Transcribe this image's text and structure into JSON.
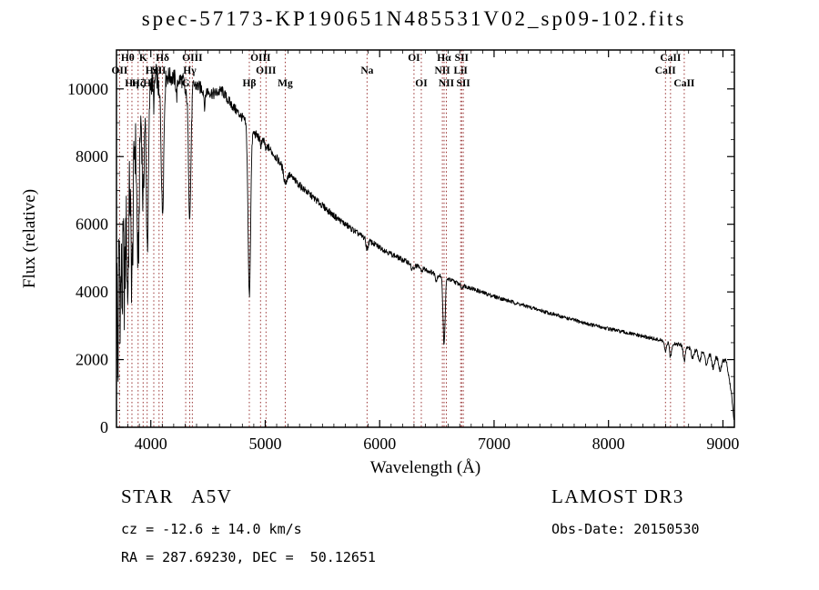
{
  "title": "spec-57173-KP190651N485531V02_sp09-102.fits",
  "annotations": {
    "class_label": "STAR   A5V",
    "survey": "LAMOST DR3",
    "cz": "cz = -12.6 ± 14.0 km/s",
    "obs_date": "Obs-Date: 20150530",
    "coords": "RA = 287.69230, DEC =  50.12651"
  },
  "chart_data": {
    "type": "line",
    "title": "spec-57173-KP190651N485531V02_sp09-102.fits",
    "xlabel": "Wavelength (Å)",
    "ylabel": "Flux (relative)",
    "xlim": [
      3700,
      9100
    ],
    "ylim": [
      0,
      11150
    ],
    "x_major_step": 1000,
    "x_minor_step": 100,
    "y_major_step": 2000,
    "y_minor_step": 500,
    "x_tick_labels": [
      4000,
      5000,
      6000,
      7000,
      8000,
      9000
    ],
    "y_tick_labels": [
      0,
      2000,
      4000,
      6000,
      8000,
      10000
    ],
    "line_color": "#000000",
    "marker_color": "#993333",
    "grid": false,
    "continuum_points": [
      [
        3700,
        5600
      ],
      [
        3760,
        6900
      ],
      [
        3800,
        7300
      ],
      [
        3850,
        8200
      ],
      [
        3900,
        9300
      ],
      [
        3950,
        9900
      ],
      [
        4000,
        10250
      ],
      [
        4060,
        10400
      ],
      [
        4150,
        10380
      ],
      [
        4250,
        10280
      ],
      [
        4350,
        10180
      ],
      [
        4450,
        10000
      ],
      [
        4550,
        9850
      ],
      [
        4620,
        9950
      ],
      [
        4700,
        9550
      ],
      [
        4800,
        9150
      ],
      [
        4900,
        8700
      ],
      [
        5000,
        8400
      ],
      [
        5100,
        7950
      ],
      [
        5200,
        7500
      ],
      [
        5300,
        7150
      ],
      [
        5400,
        6850
      ],
      [
        5500,
        6550
      ],
      [
        5600,
        6250
      ],
      [
        5700,
        6000
      ],
      [
        5800,
        5750
      ],
      [
        5900,
        5520
      ],
      [
        6000,
        5320
      ],
      [
        6100,
        5120
      ],
      [
        6200,
        4950
      ],
      [
        6300,
        4800
      ],
      [
        6400,
        4660
      ],
      [
        6500,
        4520
      ],
      [
        6600,
        4380
      ],
      [
        6700,
        4230
      ],
      [
        6800,
        4110
      ],
      [
        6900,
        3980
      ],
      [
        7000,
        3870
      ],
      [
        7200,
        3660
      ],
      [
        7400,
        3460
      ],
      [
        7600,
        3260
      ],
      [
        7800,
        3070
      ],
      [
        8000,
        2910
      ],
      [
        8200,
        2760
      ],
      [
        8400,
        2610
      ],
      [
        8600,
        2460
      ],
      [
        8800,
        2260
      ],
      [
        8950,
        2080
      ],
      [
        9030,
        1950
      ],
      [
        9070,
        1100
      ],
      [
        9100,
        150
      ]
    ],
    "absorption_lines": [
      {
        "center": 3712,
        "depth": 4200,
        "width": 5
      },
      {
        "center": 3734,
        "depth": 2600,
        "width": 5
      },
      {
        "center": 3750,
        "depth": 2900,
        "width": 6
      },
      {
        "center": 3771,
        "depth": 3100,
        "width": 7
      },
      {
        "center": 3798,
        "depth": 3300,
        "width": 8
      },
      {
        "center": 3835,
        "depth": 3600,
        "width": 9
      },
      {
        "center": 3889,
        "depth": 4200,
        "width": 10
      },
      {
        "center": 3933,
        "depth": 3100,
        "width": 8
      },
      {
        "center": 3970,
        "depth": 4600,
        "width": 10
      },
      {
        "center": 4026,
        "depth": 700,
        "width": 6
      },
      {
        "center": 4072,
        "depth": 600,
        "width": 6
      },
      {
        "center": 4102,
        "depth": 4000,
        "width": 11
      },
      {
        "center": 4226,
        "depth": 500,
        "width": 6
      },
      {
        "center": 4305,
        "depth": 400,
        "width": 8
      },
      {
        "center": 4340,
        "depth": 3900,
        "width": 11
      },
      {
        "center": 4471,
        "depth": 450,
        "width": 6
      },
      {
        "center": 4861,
        "depth": 5000,
        "width": 11
      },
      {
        "center": 4959,
        "depth": 200,
        "width": 6
      },
      {
        "center": 5007,
        "depth": 200,
        "width": 6
      },
      {
        "center": 5175,
        "depth": 380,
        "width": 14
      },
      {
        "center": 5890,
        "depth": 280,
        "width": 9
      },
      {
        "center": 6280,
        "depth": 160,
        "width": 8
      },
      {
        "center": 6300,
        "depth": 150,
        "width": 6
      },
      {
        "center": 6364,
        "depth": 130,
        "width": 6
      },
      {
        "center": 6495,
        "depth": 180,
        "width": 8
      },
      {
        "center": 6563,
        "depth": 2000,
        "width": 9
      },
      {
        "center": 6717,
        "depth": 120,
        "width": 6
      },
      {
        "center": 8498,
        "depth": 330,
        "width": 8
      },
      {
        "center": 8542,
        "depth": 430,
        "width": 9
      },
      {
        "center": 8662,
        "depth": 430,
        "width": 9
      },
      {
        "center": 8735,
        "depth": 260,
        "width": 11
      },
      {
        "center": 8795,
        "depth": 310,
        "width": 11
      },
      {
        "center": 8855,
        "depth": 330,
        "width": 11
      },
      {
        "center": 8915,
        "depth": 360,
        "width": 11
      },
      {
        "center": 8975,
        "depth": 360,
        "width": 11
      }
    ],
    "noise_profile": [
      [
        3700,
        1500
      ],
      [
        3770,
        1350
      ],
      [
        3840,
        1050
      ],
      [
        3920,
        750
      ],
      [
        4000,
        450
      ],
      [
        4120,
        300
      ],
      [
        4300,
        230
      ],
      [
        4500,
        180
      ],
      [
        4800,
        140
      ],
      [
        5200,
        110
      ],
      [
        5600,
        95
      ],
      [
        6000,
        85
      ],
      [
        6500,
        70
      ],
      [
        7000,
        60
      ],
      [
        7600,
        55
      ],
      [
        8200,
        55
      ],
      [
        8800,
        65
      ],
      [
        9100,
        80
      ]
    ],
    "spectral_line_markers": [
      {
        "label": "Hθ",
        "wavelength": 3798,
        "row": 0
      },
      {
        "label": "K",
        "wavelength": 3933,
        "row": 0
      },
      {
        "label": "Hδ",
        "wavelength": 4102,
        "row": 0
      },
      {
        "label": "OIII",
        "wavelength": 4363,
        "row": 0
      },
      {
        "label": "OIII",
        "wavelength": 4959,
        "row": 0
      },
      {
        "label": "OI",
        "wavelength": 6300,
        "row": 0
      },
      {
        "label": "Hα",
        "wavelength": 6563,
        "row": 0
      },
      {
        "label": "SII",
        "wavelength": 6717,
        "row": 0
      },
      {
        "label": "CaII",
        "wavelength": 8542,
        "row": 0
      },
      {
        "label": "OII",
        "wavelength": 3727,
        "row": 1
      },
      {
        "label": "HeI",
        "wavelength": 4026,
        "row": 1
      },
      {
        "label": "SII",
        "wavelength": 4072,
        "row": 1
      },
      {
        "label": "Hγ",
        "wavelength": 4340,
        "row": 1
      },
      {
        "label": "OIII",
        "wavelength": 5007,
        "row": 1
      },
      {
        "label": "Na",
        "wavelength": 5890,
        "row": 1
      },
      {
        "label": "NII",
        "wavelength": 6548,
        "row": 1
      },
      {
        "label": "LiI",
        "wavelength": 6708,
        "row": 1
      },
      {
        "label": "CaII",
        "wavelength": 8498,
        "row": 1
      },
      {
        "label": "Hη",
        "wavelength": 3835,
        "row": 2
      },
      {
        "label": "Hζ",
        "wavelength": 3889,
        "row": 2
      },
      {
        "label": "H",
        "wavelength": 3968,
        "row": 2
      },
      {
        "label": "G",
        "wavelength": 4305,
        "row": 2
      },
      {
        "label": "Hβ",
        "wavelength": 4861,
        "row": 2
      },
      {
        "label": "Mg",
        "wavelength": 5175,
        "row": 2
      },
      {
        "label": "OI",
        "wavelength": 6364,
        "row": 2
      },
      {
        "label": "NII",
        "wavelength": 6583,
        "row": 2
      },
      {
        "label": "SII",
        "wavelength": 6731,
        "row": 2
      },
      {
        "label": "CaII",
        "wavelength": 8662,
        "row": 2
      }
    ]
  }
}
